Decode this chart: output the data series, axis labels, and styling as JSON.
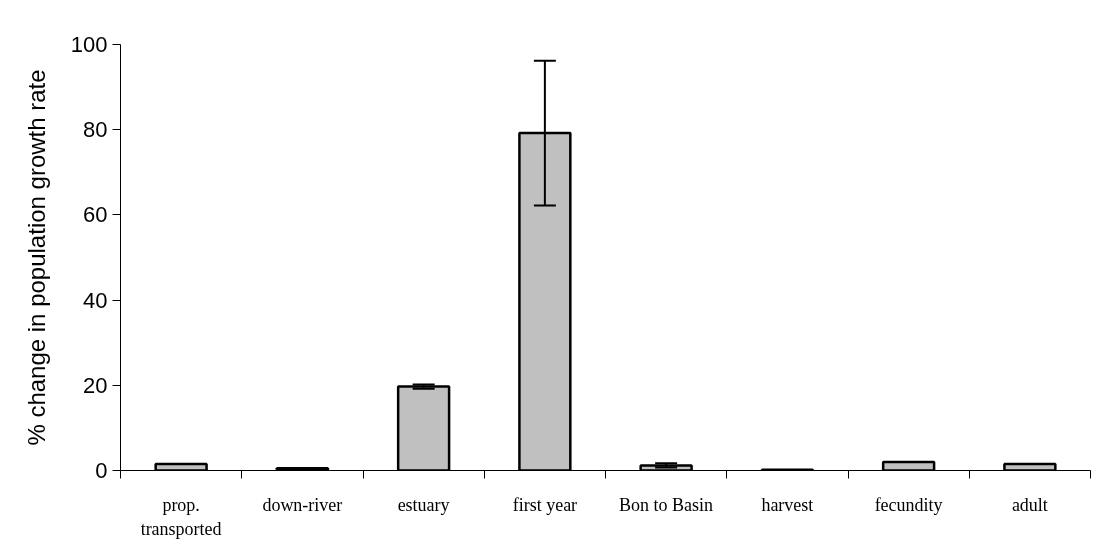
{
  "chart_data": {
    "type": "bar",
    "ylabel": "% change in population growth rate",
    "categories": [
      "prop.\ntransported",
      "down-river",
      "estuary",
      "first year",
      "Bon to Basin",
      "harvest",
      "fecundity",
      "adult"
    ],
    "values": [
      1.5,
      0.5,
      19.7,
      79.2,
      1.2,
      0.2,
      2.0,
      1.5
    ],
    "errors": [
      null,
      null,
      0.5,
      17,
      0.5,
      null,
      null,
      null
    ],
    "color": "#c0c0c0",
    "ylim": [
      0,
      100
    ],
    "yticks": [
      0,
      20,
      40,
      60,
      80,
      100
    ],
    "grid": false
  }
}
